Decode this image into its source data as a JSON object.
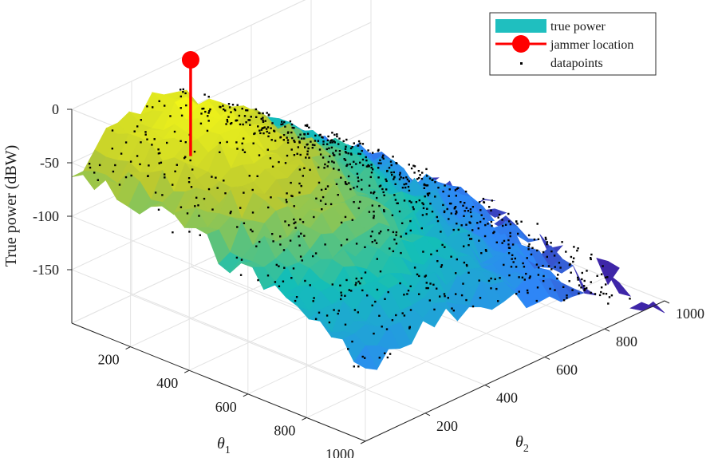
{
  "chart_data": {
    "type": "surface3d",
    "zlabel": "True power (dBW)",
    "x1label": "θ",
    "x1sub": "1",
    "x2label": "θ",
    "x2sub": "2",
    "theta1_ticks": [
      "200",
      "400",
      "600",
      "800",
      "1000"
    ],
    "theta2_ticks": [
      "200",
      "400",
      "600",
      "800",
      "1000"
    ],
    "z_ticks": [
      "0",
      "-50",
      "-100",
      "-150"
    ],
    "theta1_values": [
      200,
      400,
      600,
      800,
      1000
    ],
    "theta2_values": [
      200,
      400,
      600,
      800,
      1000
    ],
    "z_values": [
      0,
      -50,
      -100,
      -150
    ],
    "theta1_range": [
      0,
      1000
    ],
    "theta2_range": [
      0,
      1000
    ],
    "z_range": [
      -200,
      0
    ],
    "grid": true,
    "legend_position": "top-right",
    "legend": [
      {
        "name": "true power",
        "kind": "surface",
        "color": "#1fbfbf"
      },
      {
        "name": "jammer location",
        "kind": "line-marker",
        "color": "#ff0000"
      },
      {
        "name": "datapoints",
        "kind": "points",
        "color": "#000000"
      }
    ],
    "jammer": {
      "theta1": 150,
      "theta2": 250,
      "power": 0
    },
    "colormap": "parula",
    "colors": {
      "low": "#3e26a8",
      "mid": "#13beb8",
      "high": "#f9fb15"
    }
  }
}
